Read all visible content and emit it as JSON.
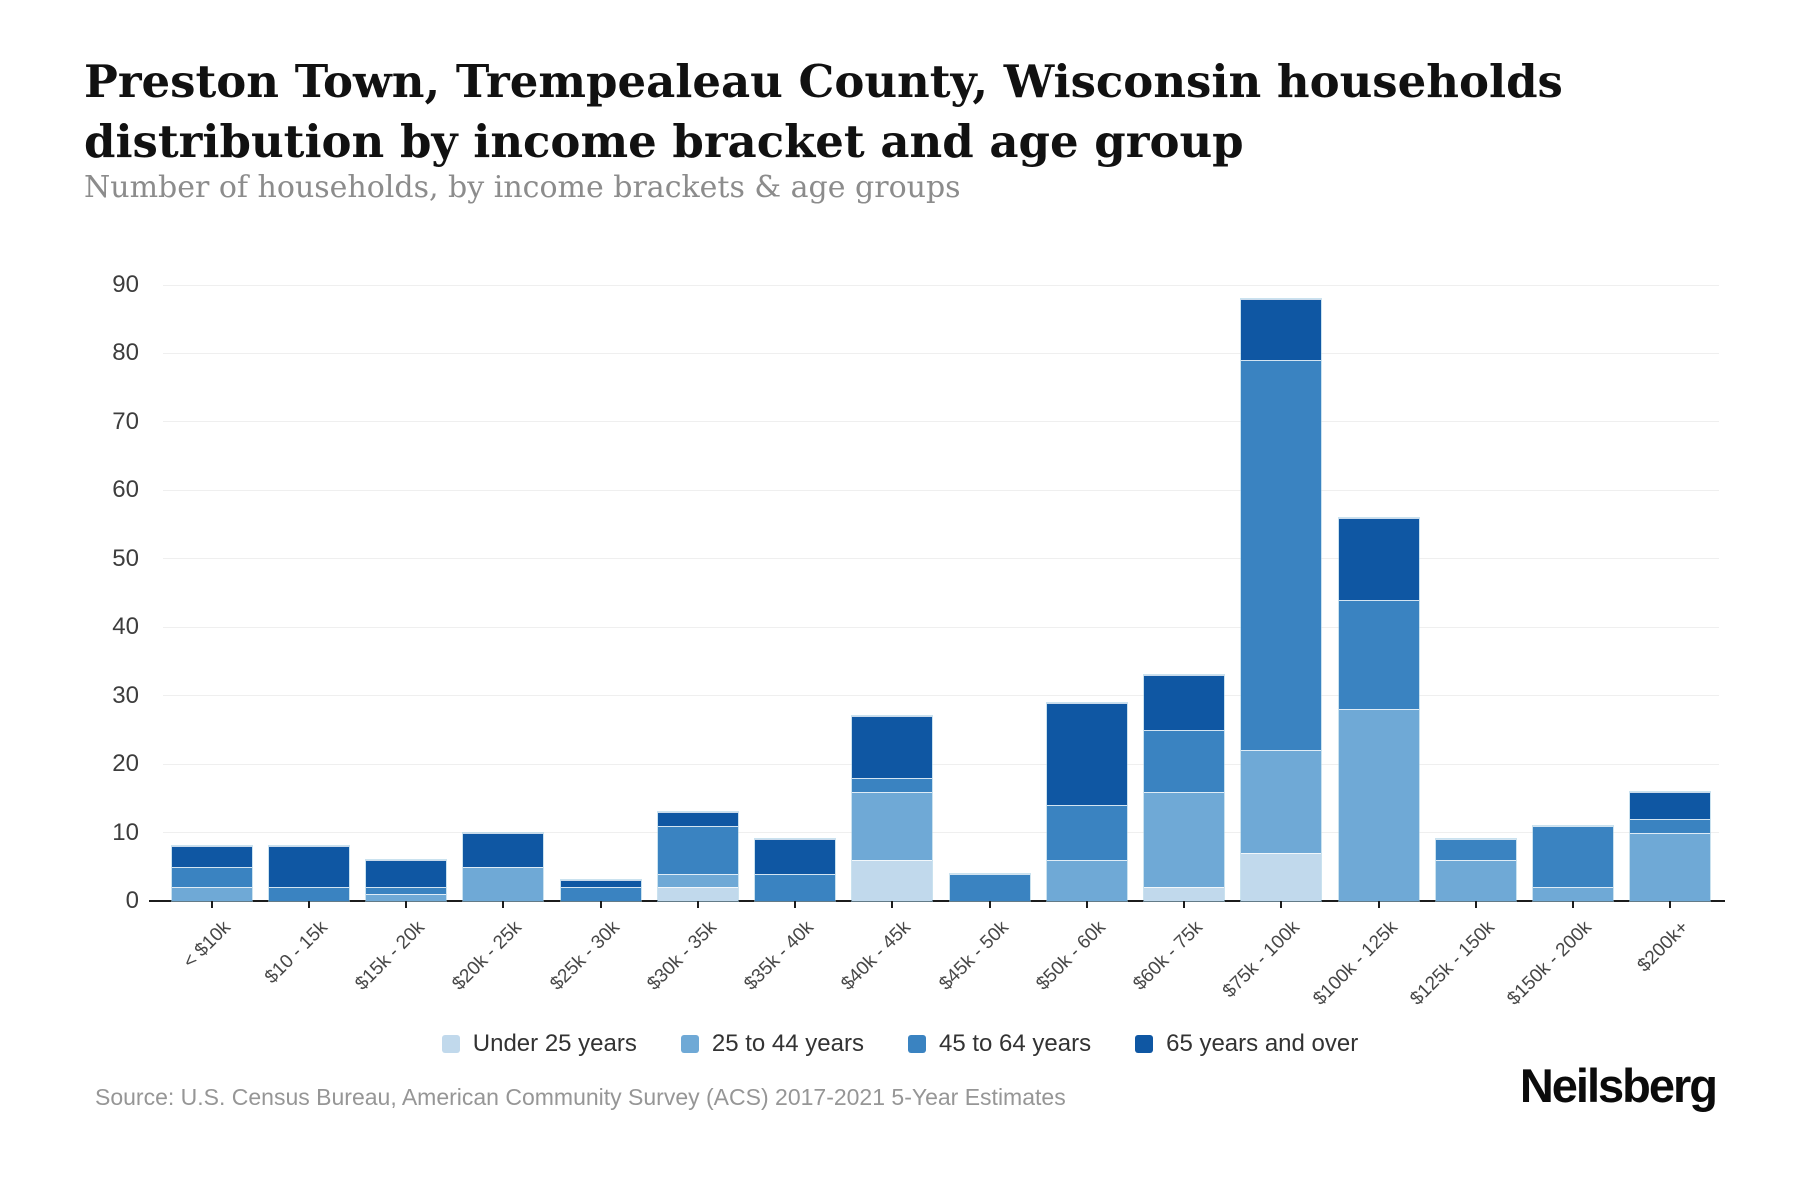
{
  "header": {
    "title_lines": [
      "Preston Town, Trempealeau County, Wisconsin households",
      "distribution by income bracket and age group"
    ],
    "subtitle": "Number of households, by income brackets & age groups"
  },
  "chart_data": {
    "type": "bar",
    "stacked": true,
    "title": "Preston Town, Trempealeau County, Wisconsin households distribution by income bracket and age group",
    "subtitle": "Number of households, by income brackets & age groups",
    "xlabel": "",
    "ylabel": "Number of households",
    "ylim": [
      0,
      90
    ],
    "yticks": [
      0,
      10,
      20,
      30,
      40,
      50,
      60,
      70,
      80,
      90
    ],
    "grid": true,
    "legend_position": "bottom",
    "categories": [
      "< $10k",
      "$10 - 15k",
      "$15k - 20k",
      "$20k - 25k",
      "$25k - 30k",
      "$30k - 35k",
      "$35k - 40k",
      "$40k - 45k",
      "$45k - 50k",
      "$50k - 60k",
      "$60k - 75k",
      "$75k - 100k",
      "$100k - 125k",
      "$125k - 150k",
      "$150k - 200k",
      "$200k+"
    ],
    "series": [
      {
        "name": "Under 25 years",
        "color": "#c1d9ec",
        "values": [
          0,
          0,
          0,
          0,
          0,
          2,
          0,
          6,
          0,
          0,
          2,
          7,
          0,
          0,
          0,
          0
        ]
      },
      {
        "name": "25 to 44 years",
        "color": "#6fa9d6",
        "values": [
          2,
          0,
          1,
          5,
          0,
          2,
          0,
          10,
          0,
          6,
          14,
          15,
          28,
          6,
          2,
          10
        ]
      },
      {
        "name": "45 to 64 years",
        "color": "#3a83c1",
        "values": [
          3,
          2,
          1,
          0,
          2,
          7,
          4,
          2,
          4,
          8,
          9,
          57,
          16,
          3,
          9,
          2
        ]
      },
      {
        "name": "65 years and over",
        "color": "#0f57a3",
        "values": [
          3,
          6,
          4,
          5,
          1,
          2,
          5,
          9,
          0,
          15,
          8,
          9,
          12,
          0,
          0,
          4
        ]
      }
    ],
    "totals": [
      8,
      8,
      6,
      10,
      3,
      13,
      9,
      27,
      4,
      29,
      33,
      88,
      56,
      9,
      11,
      16
    ]
  },
  "footer": {
    "source": "Source: U.S. Census Bureau, American Community Survey (ACS) 2017-2021 5-Year Estimates",
    "brand": "Neilsberg"
  }
}
